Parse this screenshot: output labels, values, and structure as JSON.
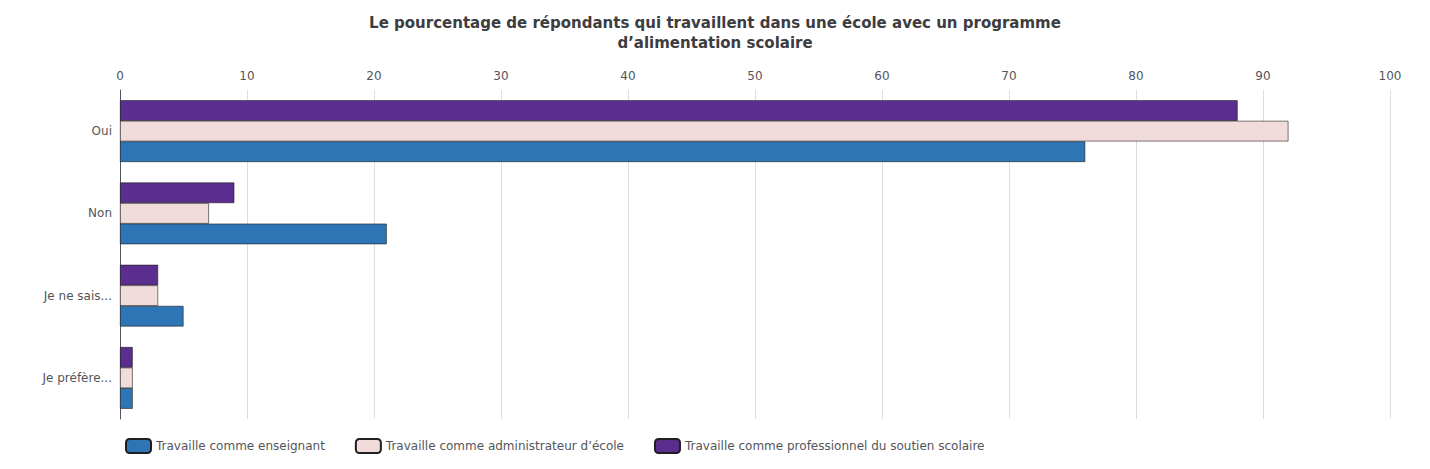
{
  "chart_data": {
    "type": "bar",
    "orientation": "horizontal",
    "title": "Le pourcentage de répondants qui travaillent dans une école avec un programme\nd’alimentation scolaire",
    "categories": [
      "Je préfère...",
      "Je ne sais...",
      "Non",
      "Oui"
    ],
    "series": [
      {
        "name": "Travaille comme enseignant",
        "color": "#2E75B6",
        "values": [
          1,
          5,
          21,
          76
        ]
      },
      {
        "name": "Travaille comme administrateur d’école",
        "color": "#F2DCDB",
        "values": [
          1,
          3,
          7,
          92
        ]
      },
      {
        "name": "Travaille comme professionnel du soutien scolaire",
        "color": "#5B2D8E",
        "values": [
          1,
          3,
          9,
          88
        ]
      }
    ],
    "xlim": [
      0,
      100
    ],
    "xticks": [
      0,
      10,
      20,
      30,
      40,
      50,
      60,
      70,
      80,
      90,
      100
    ],
    "grid": true,
    "legend": "lower left"
  }
}
